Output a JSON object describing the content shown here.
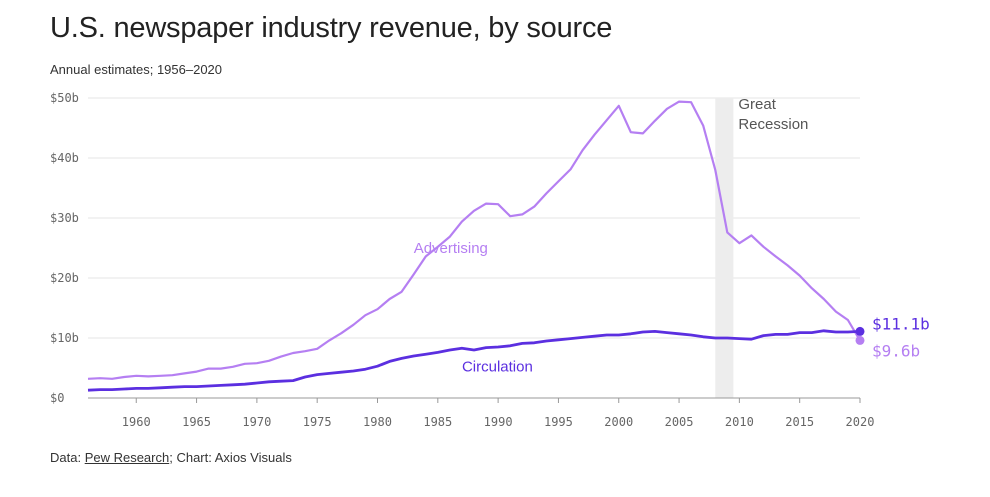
{
  "header": {
    "title": "U.S. newspaper industry revenue, by source",
    "subtitle": "Annual estimates; 1956–2020"
  },
  "footer": {
    "prefix": "Data: ",
    "source_link": "Pew Research",
    "suffix": "; Chart: Axios Visuals"
  },
  "colors": {
    "advertising": "#b57ff2",
    "circulation": "#5b2fe0",
    "grid": "#e6e6e6",
    "recession": "#ededed"
  },
  "chart_data": {
    "type": "line",
    "title": "U.S. newspaper industry revenue, by source",
    "subtitle": "Annual estimates; 1956–2020",
    "xlim": [
      1956,
      2020
    ],
    "ylim": [
      0,
      50
    ],
    "x_ticks": [
      "1960",
      "1965",
      "1970",
      "1975",
      "1980",
      "1985",
      "1990",
      "1995",
      "2000",
      "2005",
      "2010",
      "2015",
      "2020"
    ],
    "y_ticks": [
      "$0",
      "$10b",
      "$20b",
      "$30b",
      "$40b",
      "$50b"
    ],
    "grid": true,
    "annotation": {
      "text_line1": "Great",
      "text_line2": "Recession",
      "x_range": [
        2008,
        2009.5
      ]
    },
    "end_labels": {
      "circulation": "$11.1b",
      "advertising": "$9.6b"
    },
    "series": [
      {
        "name": "Advertising",
        "x": [
          1956,
          1957,
          1958,
          1959,
          1960,
          1961,
          1962,
          1963,
          1964,
          1965,
          1966,
          1967,
          1968,
          1969,
          1970,
          1971,
          1972,
          1973,
          1974,
          1975,
          1976,
          1977,
          1978,
          1979,
          1980,
          1981,
          1982,
          1983,
          1984,
          1985,
          1986,
          1987,
          1988,
          1989,
          1990,
          1991,
          1992,
          1993,
          1994,
          1995,
          1996,
          1997,
          1998,
          1999,
          2000,
          2001,
          2002,
          2003,
          2004,
          2005,
          2006,
          2007,
          2008,
          2009,
          2010,
          2011,
          2012,
          2013,
          2014,
          2015,
          2016,
          2017,
          2018,
          2019,
          2020
        ],
        "values": [
          3.2,
          3.3,
          3.2,
          3.5,
          3.7,
          3.6,
          3.7,
          3.8,
          4.1,
          4.4,
          4.9,
          4.9,
          5.2,
          5.7,
          5.8,
          6.2,
          6.9,
          7.5,
          7.8,
          8.2,
          9.6,
          10.8,
          12.2,
          13.8,
          14.8,
          16.5,
          17.7,
          20.6,
          23.6,
          25.2,
          26.9,
          29.4,
          31.2,
          32.4,
          32.3,
          30.3,
          30.6,
          31.9,
          34.1,
          36.1,
          38.1,
          41.3,
          43.9,
          46.3,
          48.7,
          44.3,
          44.1,
          46.2,
          48.2,
          49.4,
          49.3,
          45.4,
          38.0,
          27.6,
          25.8,
          27.1,
          25.2,
          23.6,
          22.1,
          20.4,
          18.3,
          16.5,
          14.4,
          13.0,
          9.6
        ]
      },
      {
        "name": "Circulation",
        "x": [
          1956,
          1957,
          1958,
          1959,
          1960,
          1961,
          1962,
          1963,
          1964,
          1965,
          1966,
          1967,
          1968,
          1969,
          1970,
          1971,
          1972,
          1973,
          1974,
          1975,
          1976,
          1977,
          1978,
          1979,
          1980,
          1981,
          1982,
          1983,
          1984,
          1985,
          1986,
          1987,
          1988,
          1989,
          1990,
          1991,
          1992,
          1993,
          1994,
          1995,
          1996,
          1997,
          1998,
          1999,
          2000,
          2001,
          2002,
          2003,
          2004,
          2005,
          2006,
          2007,
          2008,
          2009,
          2010,
          2011,
          2012,
          2013,
          2014,
          2015,
          2016,
          2017,
          2018,
          2019,
          2020
        ],
        "values": [
          1.3,
          1.4,
          1.4,
          1.5,
          1.6,
          1.6,
          1.7,
          1.8,
          1.9,
          1.9,
          2.0,
          2.1,
          2.2,
          2.3,
          2.5,
          2.7,
          2.8,
          2.9,
          3.5,
          3.9,
          4.1,
          4.3,
          4.5,
          4.8,
          5.3,
          6.1,
          6.6,
          7.0,
          7.3,
          7.6,
          8.0,
          8.3,
          8.0,
          8.4,
          8.5,
          8.7,
          9.1,
          9.2,
          9.5,
          9.7,
          9.9,
          10.1,
          10.3,
          10.5,
          10.5,
          10.7,
          11.0,
          11.1,
          10.9,
          10.7,
          10.5,
          10.2,
          10.0,
          10.0,
          9.9,
          9.8,
          10.4,
          10.6,
          10.6,
          10.9,
          10.9,
          11.2,
          11.0,
          11.0,
          11.1
        ]
      }
    ]
  }
}
